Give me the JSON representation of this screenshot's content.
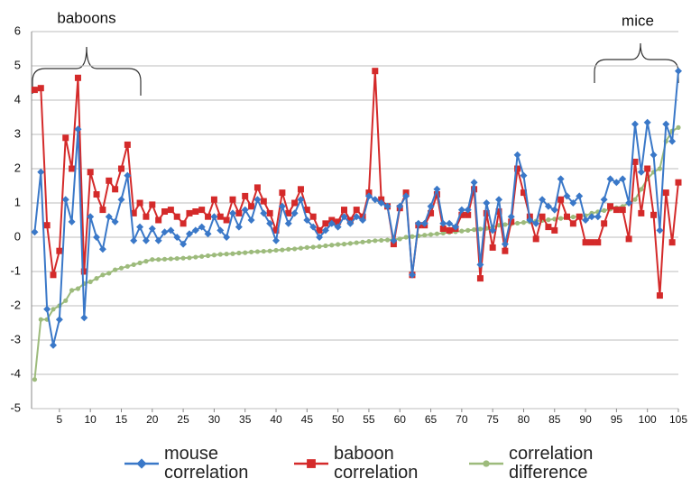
{
  "chart_data": {
    "type": "line",
    "annotations": [
      "baboons",
      "mice"
    ],
    "x": [
      1,
      2,
      3,
      4,
      5,
      6,
      7,
      8,
      9,
      10,
      11,
      12,
      13,
      14,
      15,
      16,
      17,
      18,
      19,
      20,
      21,
      22,
      23,
      24,
      25,
      26,
      27,
      28,
      29,
      30,
      31,
      32,
      33,
      34,
      35,
      36,
      37,
      38,
      39,
      40,
      41,
      42,
      43,
      44,
      45,
      46,
      47,
      48,
      49,
      50,
      51,
      52,
      53,
      54,
      55,
      56,
      57,
      58,
      59,
      60,
      61,
      62,
      63,
      64,
      65,
      66,
      67,
      68,
      69,
      70,
      71,
      72,
      73,
      74,
      75,
      76,
      77,
      78,
      79,
      80,
      81,
      82,
      83,
      84,
      85,
      86,
      87,
      88,
      89,
      90,
      91,
      92,
      93,
      94,
      95,
      96,
      97,
      98,
      99,
      100,
      101,
      102,
      103,
      104,
      105
    ],
    "xlim": [
      0.5,
      105
    ],
    "xticks": [
      5,
      10,
      15,
      20,
      25,
      30,
      35,
      40,
      45,
      50,
      55,
      60,
      65,
      70,
      75,
      80,
      85,
      90,
      95,
      100,
      105
    ],
    "ylim": [
      -5,
      6
    ],
    "yticks": [
      -5,
      -4,
      -3,
      -2,
      -1,
      0,
      1,
      2,
      3,
      4,
      5,
      6
    ],
    "grid": true,
    "series": [
      {
        "name": "mouse correlation",
        "color": "#3a78c8",
        "marker": "diamond",
        "values": [
          0.15,
          1.9,
          -2.1,
          -3.15,
          -2.4,
          1.1,
          0.45,
          3.15,
          -2.35,
          0.6,
          0.0,
          -0.35,
          0.6,
          0.45,
          1.1,
          1.8,
          -0.1,
          0.3,
          -0.1,
          0.25,
          -0.1,
          0.15,
          0.2,
          0.0,
          -0.2,
          0.1,
          0.2,
          0.3,
          0.1,
          0.6,
          0.2,
          0.0,
          0.7,
          0.3,
          0.8,
          0.5,
          1.1,
          0.7,
          0.4,
          -0.1,
          0.9,
          0.4,
          0.7,
          1.1,
          0.5,
          0.3,
          0.0,
          0.2,
          0.4,
          0.3,
          0.6,
          0.4,
          0.6,
          0.5,
          1.2,
          1.1,
          1.0,
          0.9,
          -0.1,
          0.9,
          1.2,
          -1.1,
          0.4,
          0.4,
          0.9,
          1.4,
          0.4,
          0.4,
          0.3,
          0.8,
          0.8,
          1.6,
          -0.8,
          1.0,
          0.2,
          1.1,
          -0.2,
          0.6,
          2.4,
          1.8,
          0.5,
          0.4,
          1.1,
          0.9,
          0.8,
          1.7,
          1.2,
          1.0,
          1.2,
          0.5,
          0.6,
          0.6,
          1.1,
          1.7,
          1.6,
          1.7,
          1.0,
          3.3,
          1.9,
          3.35,
          2.4,
          0.2,
          3.3,
          2.8,
          4.85
        ]
      },
      {
        "name": "baboon correlation",
        "color": "#d42a2a",
        "marker": "square",
        "values": [
          4.3,
          4.35,
          0.35,
          -1.1,
          -0.4,
          2.9,
          2.0,
          4.65,
          -1.0,
          1.9,
          1.25,
          0.8,
          1.65,
          1.4,
          2.0,
          2.7,
          0.7,
          1.0,
          0.6,
          0.95,
          0.5,
          0.75,
          0.8,
          0.6,
          0.4,
          0.7,
          0.75,
          0.8,
          0.6,
          1.1,
          0.6,
          0.5,
          1.1,
          0.7,
          1.2,
          0.9,
          1.45,
          1.05,
          0.7,
          0.2,
          1.3,
          0.7,
          1.0,
          1.4,
          0.8,
          0.6,
          0.2,
          0.4,
          0.5,
          0.45,
          0.8,
          0.5,
          0.8,
          0.6,
          1.3,
          4.85,
          1.1,
          0.9,
          -0.2,
          0.85,
          1.3,
          -1.1,
          0.35,
          0.35,
          0.7,
          1.25,
          0.25,
          0.2,
          0.25,
          0.65,
          0.65,
          1.4,
          -1.2,
          0.7,
          -0.3,
          0.75,
          -0.4,
          0.45,
          2.0,
          1.3,
          0.6,
          -0.05,
          0.6,
          0.3,
          0.2,
          1.1,
          0.6,
          0.4,
          0.6,
          -0.15,
          -0.15,
          -0.15,
          0.4,
          0.9,
          0.8,
          0.8,
          -0.05,
          2.2,
          0.7,
          2.0,
          0.65,
          -1.7,
          1.3,
          -0.15,
          1.6
        ]
      },
      {
        "name": "correlation difference",
        "color": "#9dbb7c",
        "marker": "circle",
        "values": [
          -4.15,
          -2.4,
          -2.4,
          -2.1,
          -2.0,
          -1.85,
          -1.55,
          -1.5,
          -1.35,
          -1.3,
          -1.2,
          -1.1,
          -1.05,
          -0.95,
          -0.9,
          -0.85,
          -0.8,
          -0.75,
          -0.7,
          -0.65,
          -0.65,
          -0.64,
          -0.63,
          -0.62,
          -0.61,
          -0.6,
          -0.58,
          -0.56,
          -0.54,
          -0.52,
          -0.5,
          -0.49,
          -0.48,
          -0.46,
          -0.45,
          -0.43,
          -0.42,
          -0.41,
          -0.4,
          -0.38,
          -0.37,
          -0.35,
          -0.34,
          -0.32,
          -0.3,
          -0.29,
          -0.27,
          -0.25,
          -0.23,
          -0.21,
          -0.2,
          -0.18,
          -0.16,
          -0.14,
          -0.12,
          -0.1,
          -0.09,
          -0.08,
          -0.06,
          -0.05,
          0.0,
          0.02,
          0.04,
          0.06,
          0.08,
          0.1,
          0.12,
          0.14,
          0.16,
          0.18,
          0.2,
          0.22,
          0.24,
          0.26,
          0.3,
          0.35,
          0.37,
          0.39,
          0.41,
          0.43,
          0.45,
          0.47,
          0.49,
          0.51,
          0.53,
          0.55,
          0.57,
          0.59,
          0.61,
          0.63,
          0.7,
          0.74,
          0.78,
          0.82,
          0.86,
          0.9,
          1.0,
          1.1,
          1.4,
          1.7,
          1.9,
          2.0,
          2.8,
          3.1,
          3.2
        ]
      }
    ]
  }
}
